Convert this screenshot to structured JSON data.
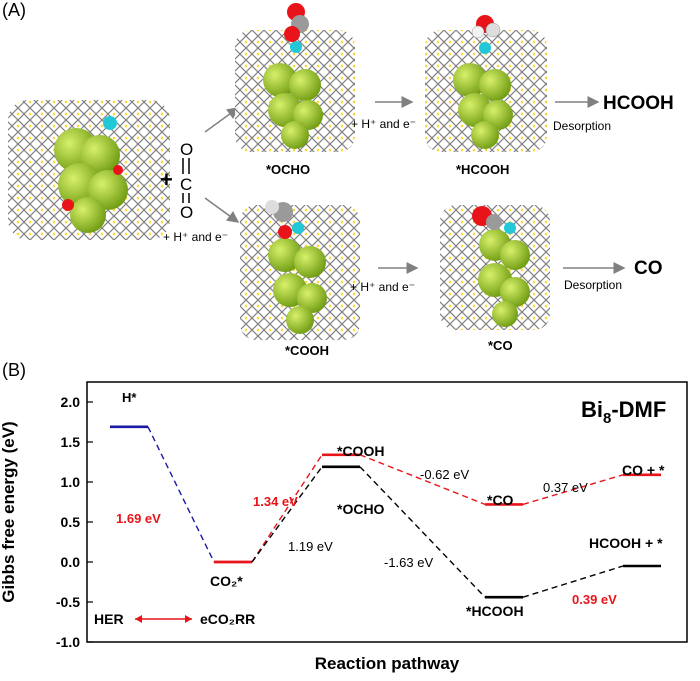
{
  "panel_a": {
    "label": "(A)",
    "plus": "+",
    "co2_letters": [
      "O",
      "C",
      "O"
    ],
    "step_label": "+ H⁺ and e⁻",
    "desorption": "Desorption",
    "clusters": {
      "ocho": "*OCHO",
      "hcooh": "*HCOOH",
      "cooh": "*COOH",
      "co": "*CO"
    },
    "products": {
      "hcooh": "HCOOH",
      "co": "CO"
    },
    "colors": {
      "bi": "#9acd32",
      "o": "#e8141a",
      "c": "#808080",
      "s": "#ffd21f",
      "n": "#22c8d8"
    }
  },
  "panel_b": {
    "label": "(B)",
    "system": "Bi",
    "system_sub": "8",
    "system_suffix": "-DMF",
    "ylabel": "Gibbs free energy (eV)",
    "xlabel": "Reaction pathway",
    "hint_left": "HER",
    "hint_right": "eCO₂RR",
    "state_labels": {
      "h": "H*",
      "co2": "CO₂*",
      "cooh": "*COOH",
      "ocho": "*OCHO",
      "co": "*CO",
      "hcooh": "*HCOOH",
      "co_desorbed": "CO + *",
      "hcooh_desorbed": "HCOOH + *"
    },
    "energy_labels": {
      "her": "1.69 eV",
      "to_cooh": "1.34 eV",
      "to_ocho": "1.19 eV",
      "cooh_to_co": "-0.62 eV",
      "co_desorb": "0.37 eV",
      "ocho_to_hcooh": "-1.63 eV",
      "hcooh_desorb": "0.39 eV"
    }
  },
  "chart_data": {
    "type": "line",
    "title": "Bi8-DMF",
    "xlabel": "Reaction pathway",
    "ylabel": "Gibbs free energy (eV)",
    "ylim": [
      -1.0,
      2.25
    ],
    "yticks": [
      -1.0,
      -0.5,
      0.0,
      0.5,
      1.0,
      1.5,
      2.0
    ],
    "grid": false,
    "series": [
      {
        "name": "HER",
        "color": "#1a1aa6",
        "states": [
          "H*",
          "CO2*"
        ],
        "values": [
          1.69,
          0.0
        ]
      },
      {
        "name": "CO pathway",
        "color": "#e8141a",
        "states": [
          "CO2*",
          "*COOH",
          "*CO",
          "CO + *"
        ],
        "values": [
          0.0,
          1.34,
          0.72,
          1.09
        ]
      },
      {
        "name": "HCOOH pathway",
        "color": "#000000",
        "states": [
          "CO2*",
          "*OCHO",
          "*HCOOH",
          "HCOOH + *"
        ],
        "values": [
          0.0,
          1.19,
          -0.44,
          -0.05
        ]
      }
    ]
  }
}
